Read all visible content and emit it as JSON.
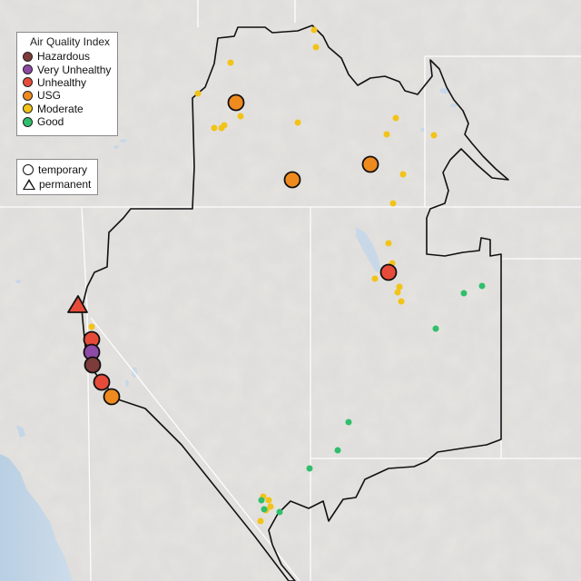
{
  "legend": {
    "title": "Air Quality Index",
    "categories": [
      {
        "label": "Hazardous",
        "color": "#7e3b3b"
      },
      {
        "label": "Very Unhealthy",
        "color": "#8f4aa6"
      },
      {
        "label": "Unhealthy",
        "color": "#e64b3a"
      },
      {
        "label": "USG",
        "color": "#ef8a1e"
      },
      {
        "label": "Moderate",
        "color": "#f2c318"
      },
      {
        "label": "Good",
        "color": "#2fbf6c"
      }
    ],
    "monitor_types": [
      {
        "label": "temporary",
        "icon": "circle-icon"
      },
      {
        "label": "permanent",
        "icon": "triangle-icon"
      }
    ]
  },
  "colors": {
    "land": "#e6e4e1",
    "water": "#c4d6e8",
    "boundary": "#111111",
    "state_line": "#ffffff"
  }
}
